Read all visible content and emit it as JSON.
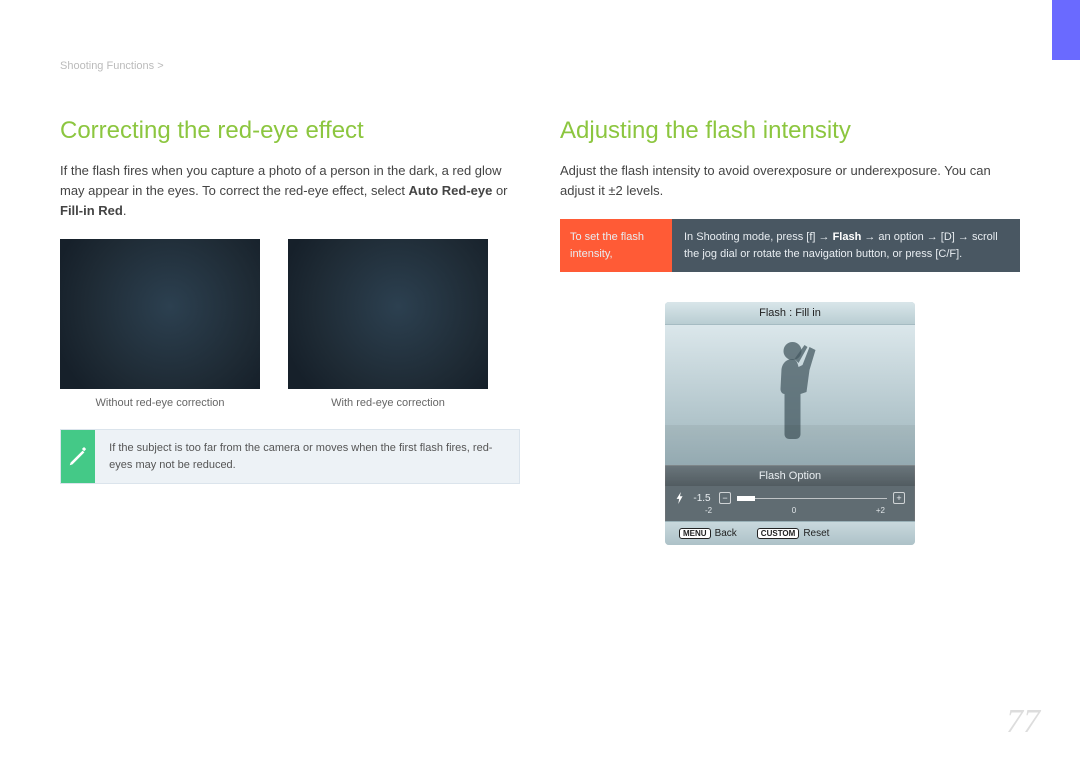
{
  "breadcrumb": "Shooting Functions >",
  "page_number": "77",
  "left": {
    "heading": "Correcting the red-eye effect",
    "body_plain": "If the flash fires when you capture a photo of a person in the dark, a red glow may appear in the eyes. To correct the red-eye effect, select ",
    "bold_a": "Auto Red-eye",
    "body_mid": " or ",
    "bold_b": "Fill-in Red",
    "body_end": ".",
    "caption_left": "Without red-eye correction",
    "caption_right": "With red-eye correction",
    "note": "If the subject is too far from the camera or moves when the first flash fires, red-eyes may not be reduced."
  },
  "right": {
    "heading": "Adjusting the flash intensity",
    "body": "Adjust the flash intensity to avoid overexposure or underexposure. You can adjust it ±2 levels.",
    "instruction_left": "To set the flash intensity,",
    "instr_a": "In Shooting mode, press [f]      → ",
    "instr_bold": "Flash",
    "instr_b": " → an option → [D]      → scroll the jog dial or rotate the navigation button, or press [C/F].",
    "lcd": {
      "title": "Flash : Fill in",
      "panel_title": "Flash Option",
      "value": "-1.5",
      "minus_cap": "−",
      "plus_cap": "+",
      "scale_left": "-2",
      "scale_mid": "0",
      "scale_right": "+2",
      "menu_btn": "MENU",
      "back": "Back",
      "custom_btn": "CUSTOM",
      "reset": "Reset",
      "slider_fill_pct": 12,
      "colors": {
        "orange": "#ff5b36",
        "green": "#44c987",
        "heading": "#8cc63f",
        "infobox_bg": "#495762"
      }
    }
  }
}
